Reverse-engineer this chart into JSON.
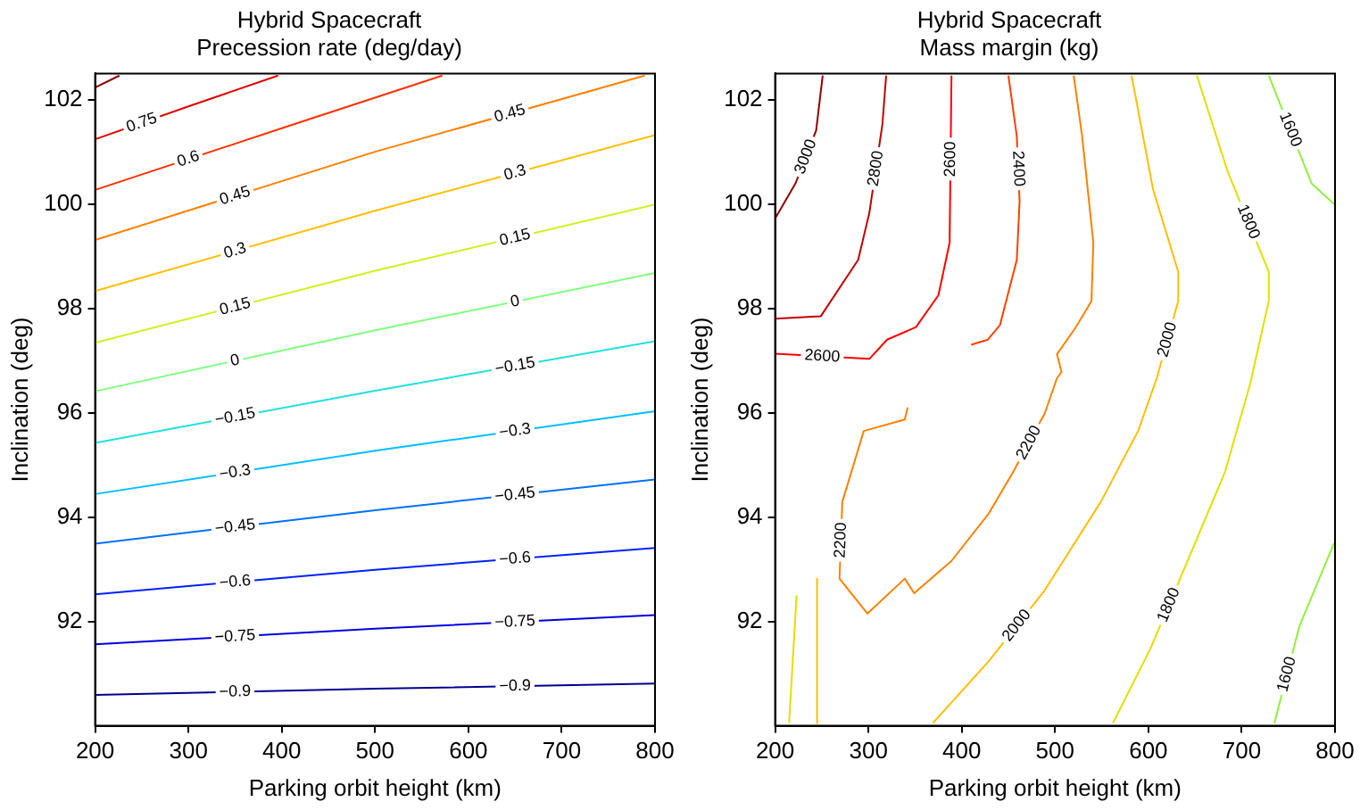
{
  "chart_data": [
    {
      "type": "line",
      "title": "Hybrid Spacecraft",
      "subtitle": "Precession rate (deg/day)",
      "xlabel": "Parking orbit height (km)",
      "ylabel": "Inclination (deg)",
      "xlim": [
        200,
        800
      ],
      "ylim": [
        90,
        102.5
      ],
      "xticks": [
        200,
        300,
        400,
        500,
        600,
        700,
        800
      ],
      "yticks": [
        92,
        94,
        96,
        98,
        100,
        102
      ],
      "marker": "none",
      "series": [
        {
          "name": "−0.9",
          "color": "#00008f",
          "x": [
            200,
            500,
            800
          ],
          "values": [
            90.59,
            90.71,
            90.81
          ]
        },
        {
          "name": "−0.75",
          "color": "#0000df",
          "x": [
            200,
            500,
            800
          ],
          "values": [
            91.56,
            91.86,
            92.12
          ]
        },
        {
          "name": "−0.6",
          "color": "#0020ff",
          "x": [
            200,
            500,
            800
          ],
          "values": [
            92.52,
            92.99,
            93.41
          ]
        },
        {
          "name": "−0.45",
          "color": "#0070ff",
          "x": [
            200,
            500,
            800
          ],
          "values": [
            93.49,
            94.13,
            94.72
          ]
        },
        {
          "name": "−0.3",
          "color": "#00bfff",
          "x": [
            200,
            500,
            800
          ],
          "values": [
            94.44,
            95.27,
            96.03
          ]
        },
        {
          "name": "−0.15",
          "color": "#20e0e0",
          "x": [
            200,
            500,
            800
          ],
          "values": [
            95.42,
            96.42,
            97.37
          ]
        },
        {
          "name": "0",
          "color": "#80ff80",
          "x": [
            200,
            500,
            800
          ],
          "values": [
            96.41,
            97.58,
            98.68
          ]
        },
        {
          "name": "0.15",
          "color": "#d0f020",
          "x": [
            200,
            500,
            800
          ],
          "values": [
            97.34,
            98.72,
            99.99
          ]
        },
        {
          "name": "0.3",
          "color": "#ffbf00",
          "x": [
            200,
            500,
            800
          ],
          "values": [
            98.33,
            99.87,
            101.32
          ]
        },
        {
          "name": "0.45",
          "color": "#ff8000",
          "x": [
            200,
            500,
            789
          ],
          "values": [
            99.31,
            101.0,
            102.46
          ]
        },
        {
          "name": "0.6",
          "color": "#ff3000",
          "x": [
            200,
            400,
            572
          ],
          "values": [
            100.27,
            101.45,
            102.46
          ]
        },
        {
          "name": "0.75",
          "color": "#df0000",
          "x": [
            200,
            300,
            396
          ],
          "values": [
            101.24,
            101.87,
            102.46
          ]
        },
        {
          "color": "#8f0000",
          "x": [
            200,
            226
          ],
          "values": [
            102.23,
            102.46
          ]
        }
      ]
    },
    {
      "type": "line",
      "title": "Hybrid Spacecraft",
      "subtitle": "Mass margin (kg)",
      "xlabel": "Parking orbit height (km)",
      "ylabel": "Inclination (deg)",
      "xlim": [
        200,
        800
      ],
      "ylim": [
        90,
        102.5
      ],
      "xticks": [
        200,
        300,
        400,
        500,
        600,
        700,
        800
      ],
      "yticks": [
        92,
        94,
        96,
        98,
        100,
        102
      ],
      "marker": "none",
      "series": [
        {
          "name": "3000",
          "color": "#8f0000",
          "x": [
            200,
            222,
            244,
            251
          ],
          "values": [
            99.72,
            100.4,
            101.41,
            102.46
          ]
        },
        {
          "name": "2800",
          "color": "#c00000",
          "x": [
            200,
            249,
            289,
            301,
            315,
            319
          ],
          "values": [
            97.8,
            97.85,
            98.93,
            99.83,
            101.53,
            102.46
          ]
        },
        {
          "name": "2600",
          "color": "#ff0000",
          "x": [
            200,
            301,
            320,
            351,
            375,
            387,
            389
          ],
          "values": [
            97.13,
            97.03,
            97.4,
            97.64,
            98.25,
            99.26,
            102.46
          ]
        },
        {
          "name": "2400",
          "color": "#ff4000",
          "x": [
            410,
            428,
            441,
            459,
            462,
            459,
            450
          ],
          "values": [
            97.3,
            97.4,
            97.68,
            98.93,
            100.05,
            101.3,
            102.46
          ]
        },
        {
          "name": "2200",
          "color": "#ff8000",
          "x": [
            520,
            529,
            541,
            539,
            522,
            502,
            507,
            502,
            489,
            455,
            429,
            389,
            349,
            339,
            299,
            269,
            272,
            295,
            339,
            342
          ],
          "values": [
            102.46,
            101.3,
            99.26,
            98.14,
            97.63,
            97.12,
            96.78,
            96.66,
            95.99,
            94.86,
            94.07,
            93.16,
            92.54,
            92.82,
            92.15,
            92.82,
            94.29,
            95.65,
            95.87,
            96.1
          ]
        },
        {
          "name": "2000",
          "color": "#ffbf00",
          "x": [
            582,
            605,
            632,
            632,
            609,
            589,
            549,
            489,
            429,
            369
          ],
          "values": [
            102.46,
            100.28,
            98.7,
            98.14,
            96.66,
            95.65,
            94.29,
            92.6,
            91.24,
            90.05
          ]
        },
        {
          "name": "1800",
          "color": "#e0e000",
          "x": [
            652,
            685,
            729,
            729,
            709,
            682,
            642,
            602,
            562
          ],
          "values": [
            102.46,
            100.62,
            98.7,
            98.14,
            96.55,
            94.86,
            93.16,
            91.47,
            90.05
          ]
        },
        {
          "name": "1600",
          "color": "#90f040",
          "x": [
            729,
            775,
            799
          ],
          "values": [
            102.46,
            100.39,
            100.0
          ]
        },
        {
          "name": "1600",
          "color": "#90f040",
          "x": [
            799,
            762,
            735
          ],
          "values": [
            93.5,
            91.92,
            90.05
          ]
        },
        {
          "color": "#ffbf00",
          "x": [
            245,
            245
          ],
          "values": [
            92.82,
            90.05
          ]
        },
        {
          "color": "#e0e000",
          "x": [
            223,
            215
          ],
          "values": [
            92.5,
            90.05
          ]
        }
      ]
    }
  ]
}
